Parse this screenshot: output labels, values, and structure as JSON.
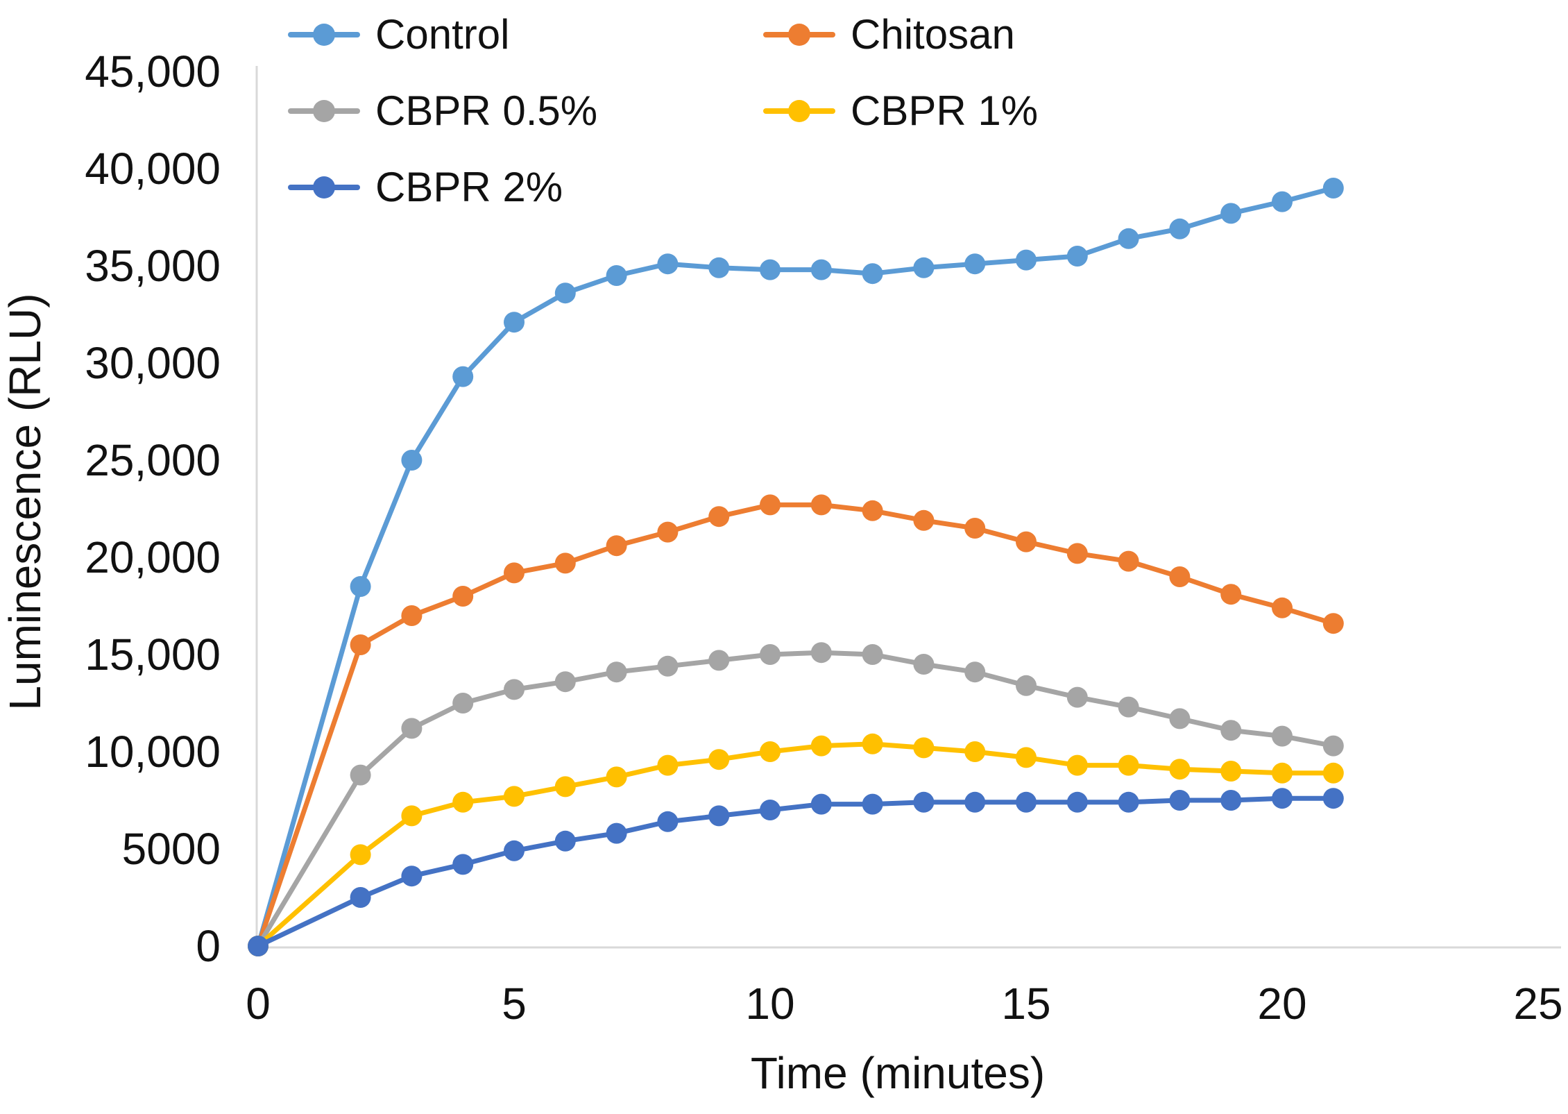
{
  "chart_data": {
    "type": "line",
    "title": "",
    "xlabel": "Time (minutes)",
    "ylabel": "Luminescence (RLU)",
    "xlim": [
      0,
      25
    ],
    "ylim": [
      0,
      45000
    ],
    "grid": false,
    "legend_position": "top-left two-column",
    "axis_color": "#D9D9D9",
    "x_ticks": [
      {
        "label": "0",
        "value": 0
      },
      {
        "label": "5",
        "value": 5
      },
      {
        "label": "10",
        "value": 10
      },
      {
        "label": "15",
        "value": 15
      },
      {
        "label": "20",
        "value": 20
      },
      {
        "label": "25",
        "value": 25
      }
    ],
    "y_ticks": [
      {
        "label": "45,000",
        "value": 45000
      },
      {
        "label": "40,000",
        "value": 40000
      },
      {
        "label": "35,000",
        "value": 35000
      },
      {
        "label": "30,000",
        "value": 30000
      },
      {
        "label": "25,000",
        "value": 25000
      },
      {
        "label": "20,000",
        "value": 20000
      },
      {
        "label": "15,000",
        "value": 15000
      },
      {
        "label": "10,000",
        "value": 10000
      },
      {
        "label": "5000",
        "value": 5000
      },
      {
        "label": "0",
        "value": 0
      }
    ],
    "x": [
      0,
      2,
      3,
      4,
      5,
      6,
      7,
      8,
      9,
      10,
      11,
      12,
      13,
      14,
      15,
      16,
      17,
      18,
      19,
      20,
      21
    ],
    "series": [
      {
        "name": "Control",
        "color": "#5B9BD5",
        "values": [
          0,
          18500,
          25000,
          29300,
          32100,
          33600,
          34500,
          35100,
          34900,
          34800,
          34800,
          34600,
          34900,
          35100,
          35300,
          35500,
          36400,
          36900,
          37700,
          38300,
          39000
        ]
      },
      {
        "name": "Chitosan",
        "color": "#ED7D31",
        "values": [
          0,
          15500,
          17000,
          18000,
          19200,
          19700,
          20600,
          21300,
          22100,
          22700,
          22700,
          22400,
          21900,
          21500,
          20800,
          20200,
          19800,
          19000,
          18100,
          17400,
          16600
        ]
      },
      {
        "name": "CBPR 0.5%",
        "color": "#A5A5A5",
        "values": [
          0,
          8800,
          11200,
          12500,
          13200,
          13600,
          14100,
          14400,
          14700,
          15000,
          15100,
          15000,
          14500,
          14100,
          13400,
          12800,
          12300,
          11700,
          11100,
          10800,
          10300
        ]
      },
      {
        "name": "CBPR 1%",
        "color": "#FFC000",
        "values": [
          0,
          4700,
          6700,
          7400,
          7700,
          8200,
          8700,
          9300,
          9600,
          10000,
          10300,
          10400,
          10200,
          10000,
          9700,
          9300,
          9300,
          9100,
          9000,
          8900,
          8900
        ]
      },
      {
        "name": "CBPR 2%",
        "color": "#4472C4",
        "values": [
          0,
          2500,
          3600,
          4200,
          4900,
          5400,
          5800,
          6400,
          6700,
          7000,
          7300,
          7300,
          7400,
          7400,
          7400,
          7400,
          7400,
          7500,
          7500,
          7600,
          7600
        ]
      }
    ]
  }
}
